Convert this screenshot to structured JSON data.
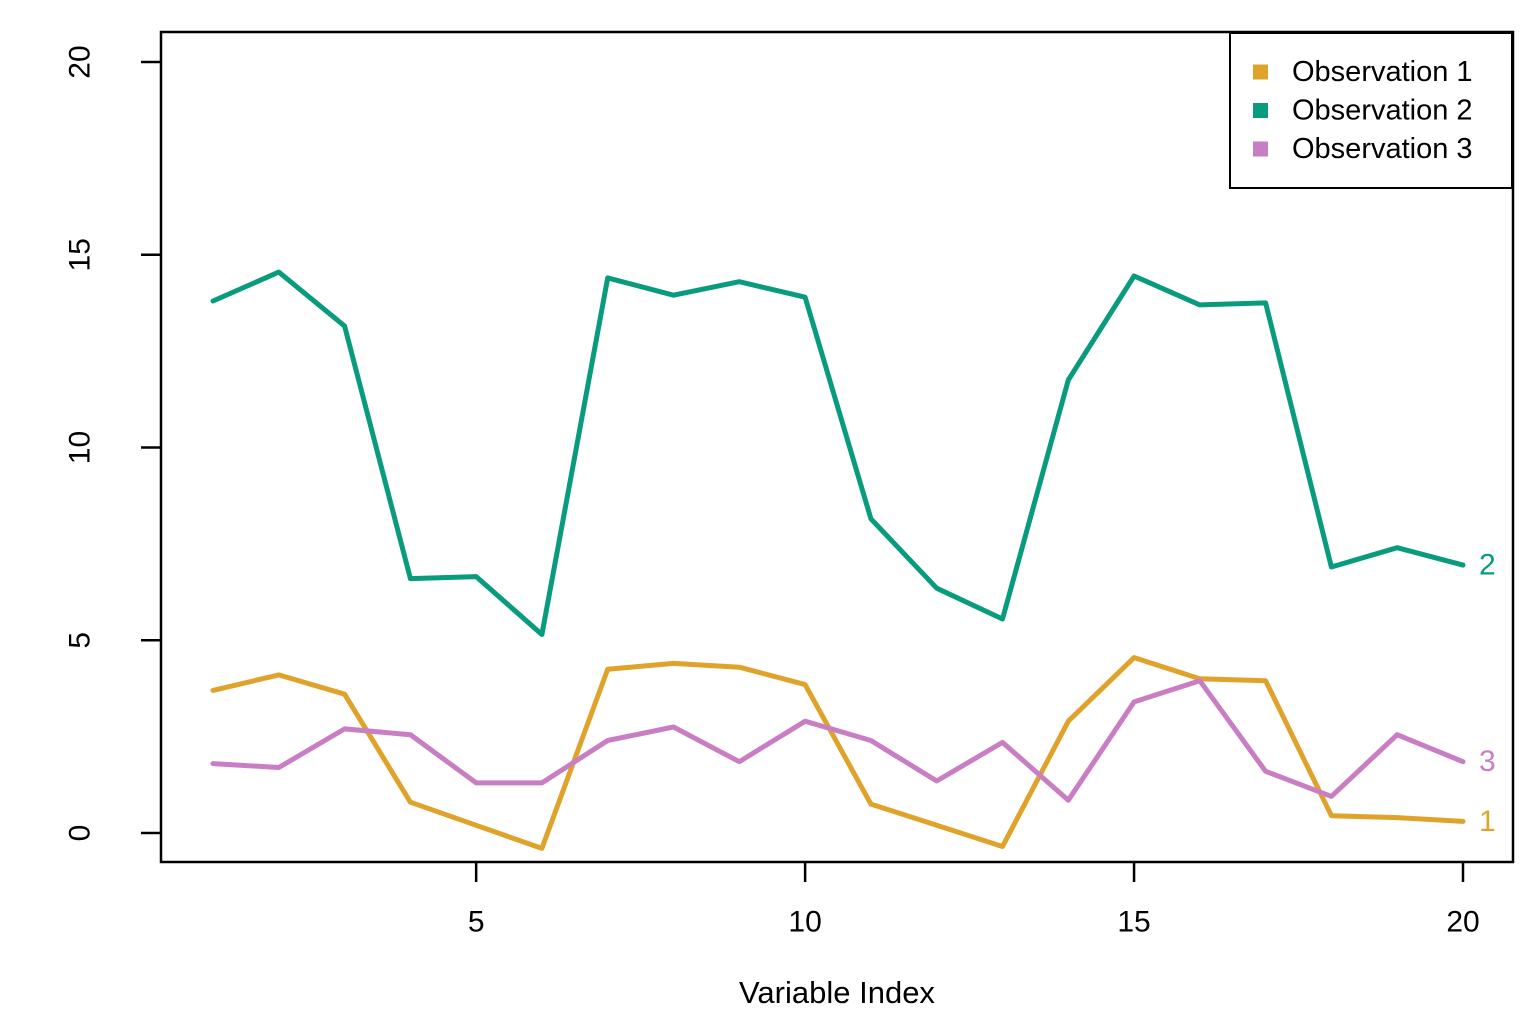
{
  "chart_data": {
    "type": "line",
    "title": "",
    "xlabel": "Variable Index",
    "ylabel": "",
    "x": [
      1,
      2,
      3,
      4,
      5,
      6,
      7,
      8,
      9,
      10,
      11,
      12,
      13,
      14,
      15,
      16,
      17,
      18,
      19,
      20
    ],
    "x_ticks": [
      5,
      10,
      15,
      20
    ],
    "y_ticks": [
      0,
      5,
      10,
      15,
      20
    ],
    "xlim": [
      0.24,
      20.76
    ],
    "ylim": [
      -0.75,
      20.78
    ],
    "grid": false,
    "legend_position": "top-right",
    "axis_color": "#000000",
    "series": [
      {
        "name": "Observation 1",
        "color": "#DFA32B",
        "end_label": "1",
        "values": [
          3.7,
          4.1,
          3.6,
          0.8,
          0.2,
          -0.4,
          4.25,
          4.4,
          4.3,
          3.85,
          0.75,
          0.2,
          -0.35,
          2.9,
          4.55,
          4.0,
          3.95,
          0.45,
          0.4,
          0.3
        ]
      },
      {
        "name": "Observation 2",
        "color": "#089B7D",
        "end_label": "2",
        "values": [
          13.8,
          14.55,
          13.15,
          6.6,
          6.65,
          5.15,
          14.4,
          13.95,
          14.3,
          13.9,
          8.15,
          6.35,
          5.55,
          11.75,
          14.45,
          13.7,
          13.75,
          6.9,
          7.4,
          6.95
        ]
      },
      {
        "name": "Observation 3",
        "color": "#C97EC4",
        "end_label": "3",
        "values": [
          1.8,
          1.7,
          2.7,
          2.55,
          1.3,
          1.3,
          2.4,
          2.75,
          1.85,
          2.9,
          2.4,
          1.35,
          2.35,
          0.85,
          3.4,
          3.95,
          1.6,
          0.95,
          2.55,
          1.85
        ]
      }
    ]
  }
}
